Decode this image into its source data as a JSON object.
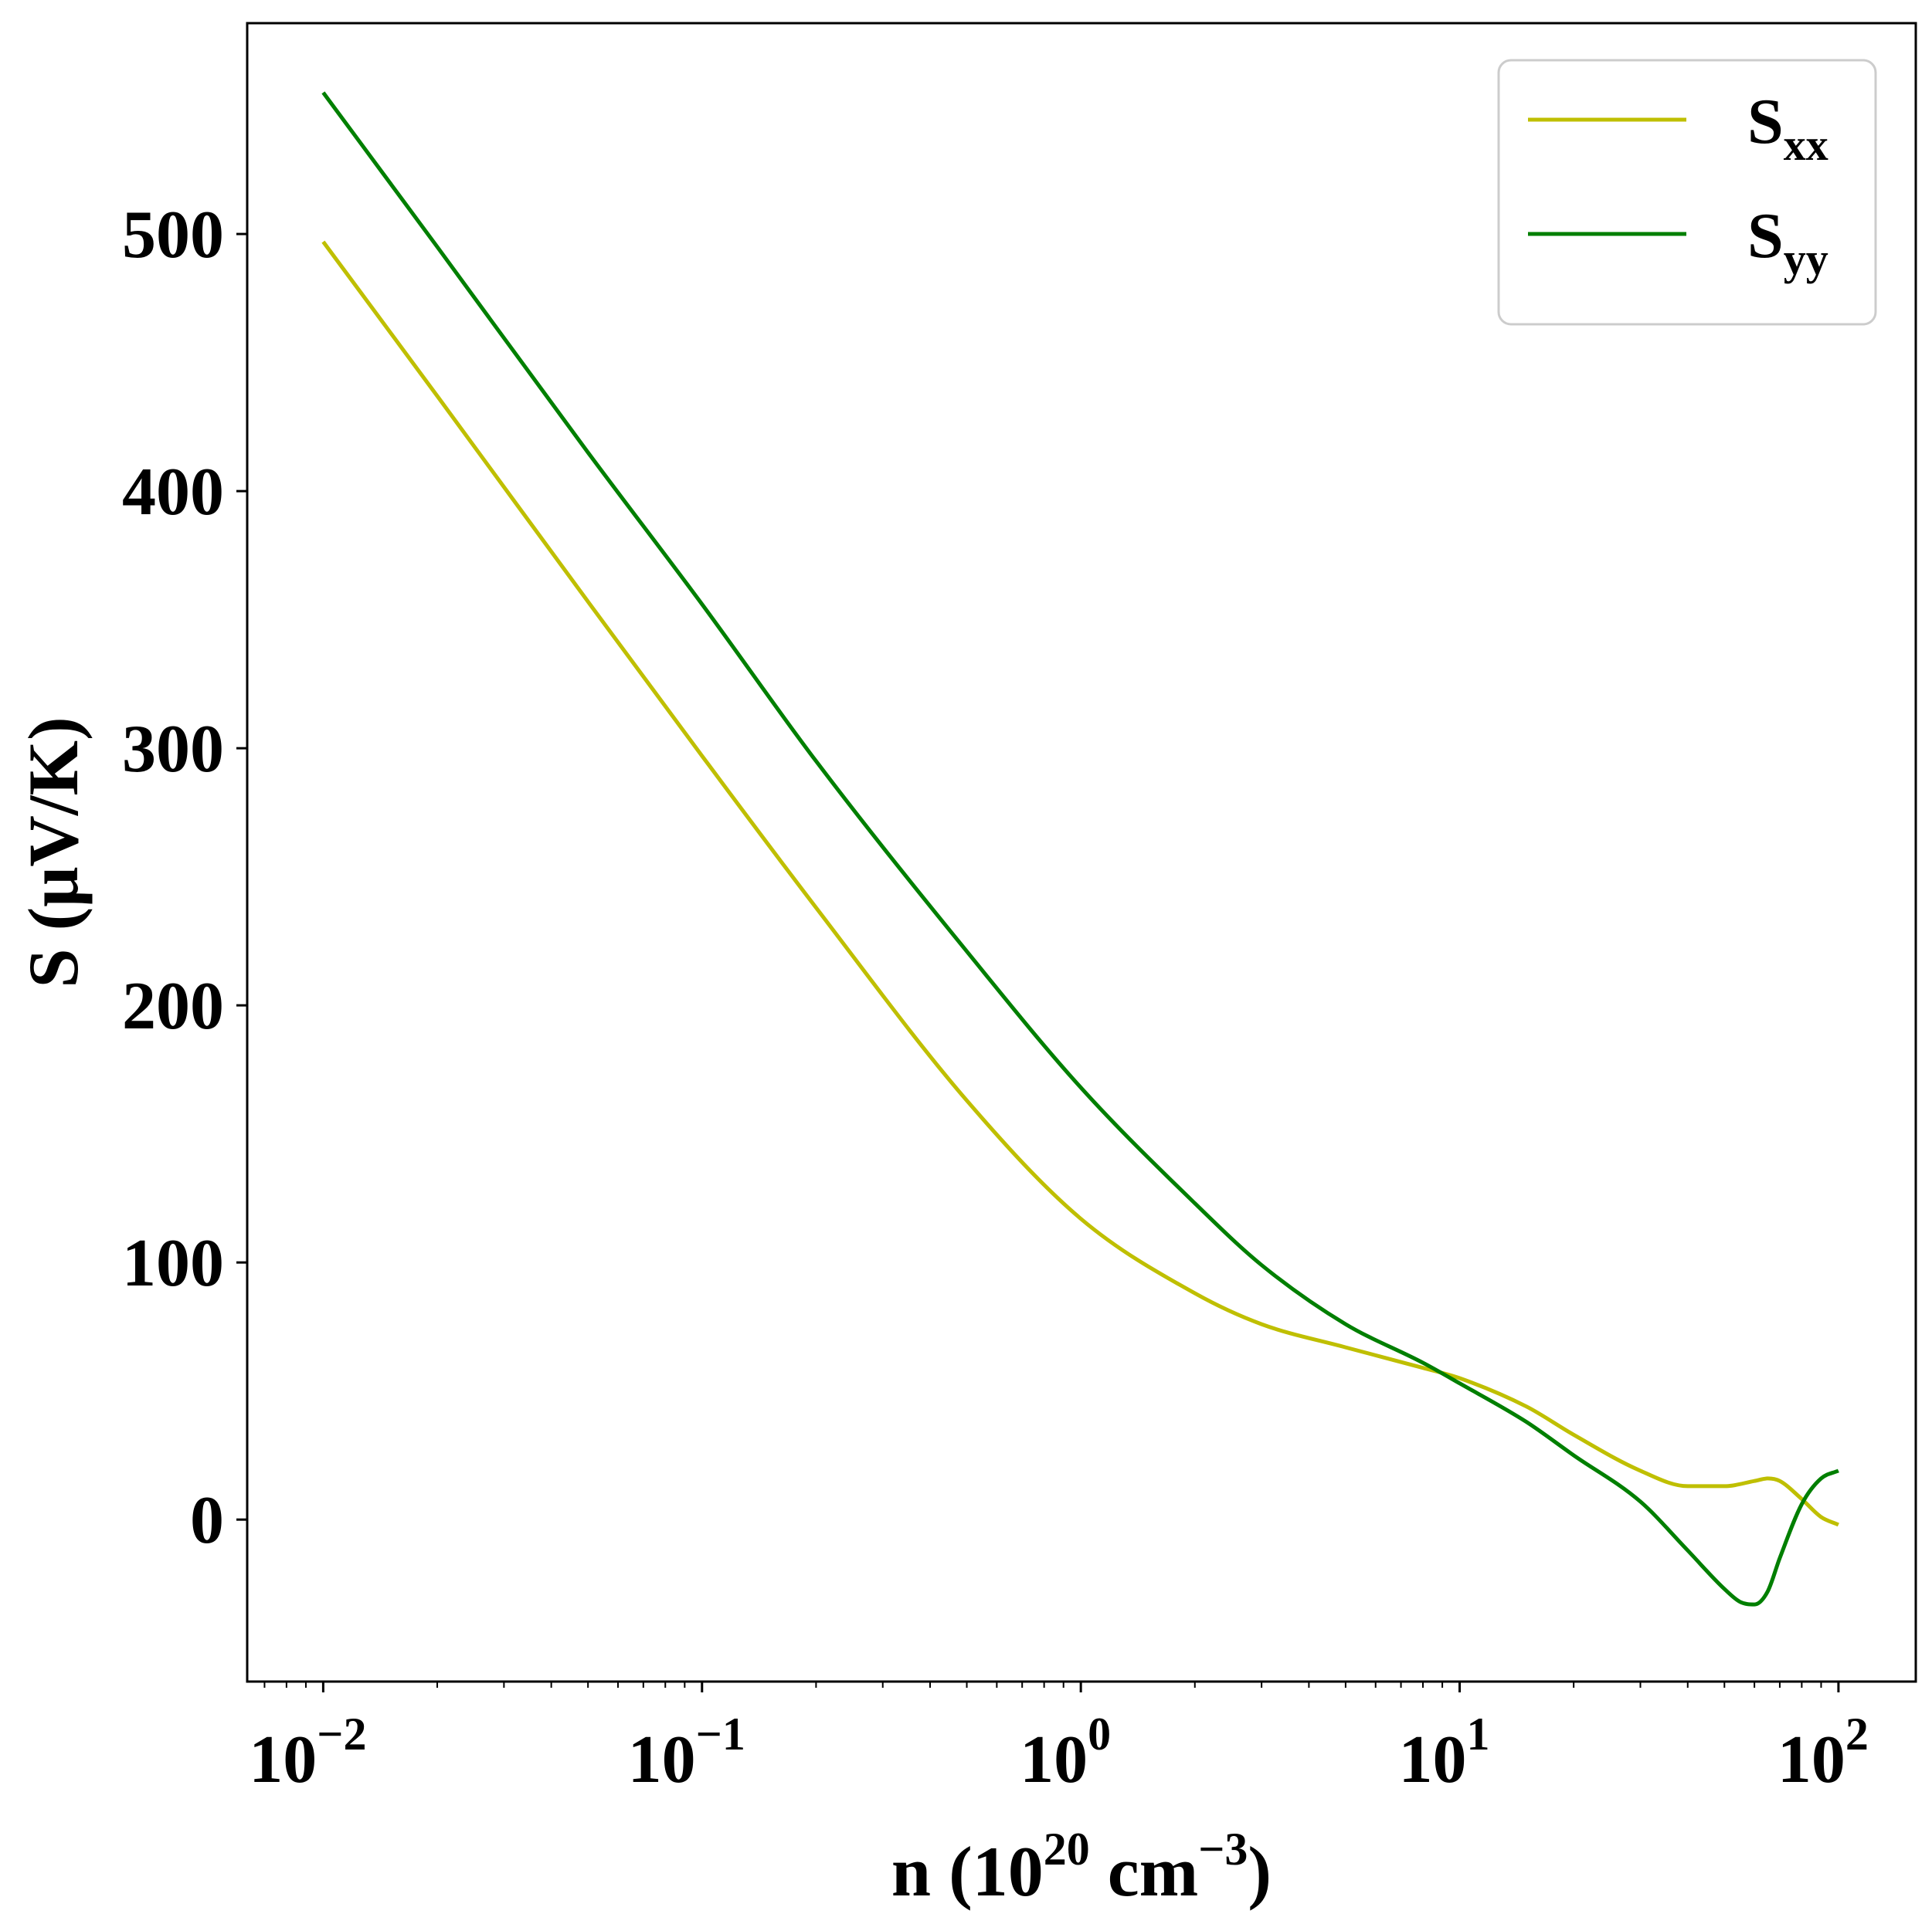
{
  "chart_data": {
    "type": "line",
    "x_scale": "log",
    "xlim": [
      0.0063,
      160
    ],
    "ylim": [
      -63,
      582
    ],
    "x_ticks": [
      {
        "base": "10",
        "exp": "−2",
        "value": 0.01
      },
      {
        "base": "10",
        "exp": "−1",
        "value": 0.1
      },
      {
        "base": "10",
        "exp": "0",
        "value": 1
      },
      {
        "base": "10",
        "exp": "1",
        "value": 10
      },
      {
        "base": "10",
        "exp": "2",
        "value": 100
      }
    ],
    "y_ticks": [
      {
        "label": "0",
        "value": 0
      },
      {
        "label": "100",
        "value": 100
      },
      {
        "label": "200",
        "value": 200
      },
      {
        "label": "300",
        "value": 300
      },
      {
        "label": "400",
        "value": 400
      },
      {
        "label": "500",
        "value": 500
      }
    ],
    "xlabel": {
      "pre": "n (10",
      "sup1": "20",
      "mid": " cm",
      "sup2": "−3",
      "post": ")"
    },
    "ylabel": "S (μV/K)",
    "legend_position": "top-right",
    "grid": false,
    "series": [
      {
        "name": {
          "base": "S",
          "sub": "xx"
        },
        "color": "#bfbf00",
        "x": [
          0.01,
          0.02,
          0.05,
          0.1,
          0.2,
          0.5,
          1,
          2,
          3,
          5,
          8,
          10,
          15,
          20,
          30,
          40,
          50,
          60,
          65,
          70,
          80,
          90,
          100
        ],
        "y": [
          497,
          437,
          357,
          297,
          238,
          163,
          117,
          88,
          76,
          67,
          59,
          55,
          44,
          33,
          19,
          13,
          13,
          15,
          16,
          15,
          8,
          1,
          -2
        ]
      },
      {
        "name": {
          "base": "S",
          "sub": "yy"
        },
        "color": "#007f00",
        "x": [
          0.01,
          0.02,
          0.05,
          0.1,
          0.2,
          0.5,
          1,
          2,
          3,
          5,
          8,
          10,
          15,
          20,
          30,
          40,
          50,
          55,
          60,
          65,
          70,
          80,
          90,
          100
        ],
        "y": [
          555,
          495,
          415,
          356,
          295,
          221,
          168,
          123,
          99,
          76,
          61,
          53,
          38,
          25,
          7,
          -12,
          -27,
          -32,
          -33,
          -28,
          -15,
          6,
          16,
          19
        ]
      }
    ]
  }
}
